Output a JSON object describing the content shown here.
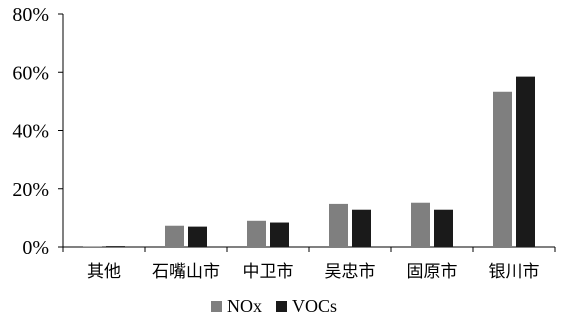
{
  "chart_data": {
    "type": "bar",
    "title": "",
    "xlabel": "",
    "ylabel": "",
    "categories": [
      "其他",
      "石嘴山市",
      "中卫市",
      "吴忠市",
      "固原市",
      "银川市"
    ],
    "series": [
      {
        "name": "NOx",
        "values": [
          0.2,
          7.3,
          9.0,
          14.8,
          15.2,
          53.3
        ]
      },
      {
        "name": "VOCs",
        "values": [
          0.3,
          7.0,
          8.4,
          12.8,
          12.8,
          58.5
        ]
      }
    ],
    "ylim": [
      0,
      80
    ],
    "yticks": [
      0,
      20,
      40,
      60,
      80
    ],
    "ytick_labels": [
      "0%",
      "20%",
      "40%",
      "60%",
      "80%"
    ],
    "grid": false,
    "legend_position": "bottom",
    "colors": {
      "NOx": "#7f7f7f",
      "VOCs": "#1a1a1a",
      "axis": "#000000"
    }
  }
}
